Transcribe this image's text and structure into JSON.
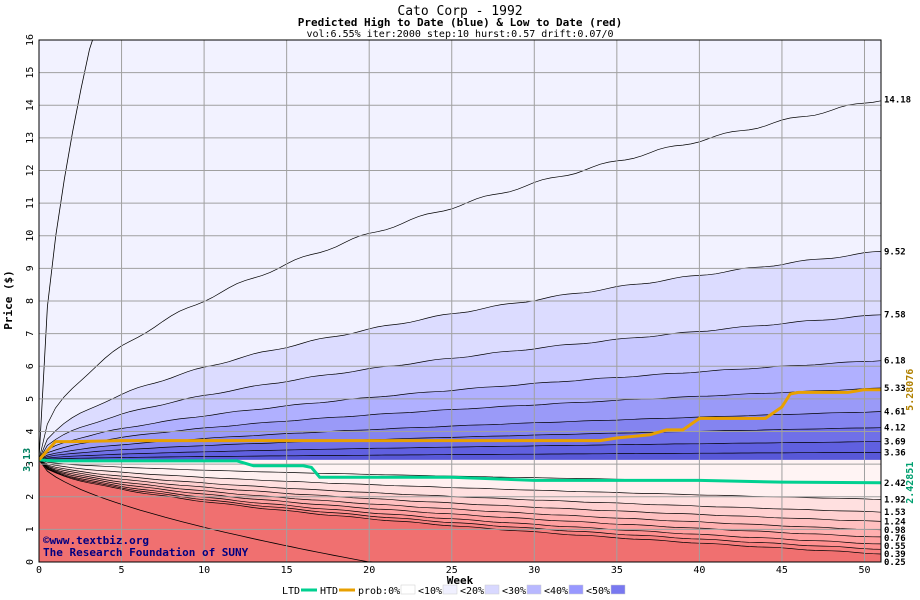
{
  "chart_data": {
    "type": "area",
    "title": "Cato Corp - 1992",
    "subtitle": "Predicted High to Date (blue) &  Low to Date (red)",
    "params": "vol:6.55% iter:2000 step:10 hurst:0.57 drift:0.07/0",
    "xlabel": "Week",
    "ylabel": "Price ($)",
    "xlim": [
      0,
      51
    ],
    "ylim": [
      0,
      16
    ],
    "x_ticks": [
      "0",
      "5",
      "10",
      "15",
      "20",
      "25",
      "30",
      "35",
      "40",
      "45",
      "50"
    ],
    "y_ticks": [
      "0",
      "1",
      "2",
      "3",
      "4",
      "5",
      "6",
      "7",
      "8",
      "9",
      "10",
      "11",
      "12",
      "13",
      "14",
      "15",
      "16"
    ],
    "grid": true,
    "start_price": 3.13,
    "start_label": "3.13",
    "high_quantiles": [
      {
        "end": 14.18,
        "label": "14.18"
      },
      {
        "end": 9.52,
        "label": "9.52"
      },
      {
        "end": 7.58,
        "label": "7.58"
      },
      {
        "end": 6.18,
        "label": "6.18"
      },
      {
        "end": 5.33,
        "label": "5.33"
      },
      {
        "end": 4.61,
        "label": "4.61"
      },
      {
        "end": 4.12,
        "label": "4.12"
      },
      {
        "end": 3.69,
        "label": "3.69"
      },
      {
        "end": 3.36,
        "label": "3.36"
      }
    ],
    "low_quantiles": [
      {
        "end": 2.42,
        "label": "2.42"
      },
      {
        "end": 1.92,
        "label": "1.92"
      },
      {
        "end": 1.53,
        "label": "1.53"
      },
      {
        "end": 1.24,
        "label": "1.24"
      },
      {
        "end": 0.98,
        "label": "0.98"
      },
      {
        "end": 0.76,
        "label": "0.76"
      },
      {
        "end": 0.55,
        "label": "0.55"
      },
      {
        "end": 0.39,
        "label": "0.39"
      },
      {
        "end": 0.25,
        "label": "0.25"
      }
    ],
    "htd_series": {
      "name": "HTD",
      "final_label": "5.28076",
      "points": [
        [
          0,
          3.13
        ],
        [
          1,
          3.69
        ],
        [
          2,
          3.69
        ],
        [
          5,
          3.72
        ],
        [
          10,
          3.72
        ],
        [
          20,
          3.72
        ],
        [
          30,
          3.72
        ],
        [
          34,
          3.72
        ],
        [
          35,
          3.8
        ],
        [
          37,
          3.9
        ],
        [
          38,
          4.05
        ],
        [
          39,
          4.05
        ],
        [
          40,
          4.4
        ],
        [
          42,
          4.4
        ],
        [
          44,
          4.4
        ],
        [
          45,
          4.75
        ],
        [
          45.5,
          5.15
        ],
        [
          46,
          5.2
        ],
        [
          49,
          5.2
        ],
        [
          50,
          5.28
        ],
        [
          51,
          5.28
        ]
      ]
    },
    "ltd_series": {
      "name": "LTD",
      "final_label": "2.42851",
      "points": [
        [
          0,
          3.13
        ],
        [
          1,
          3.1
        ],
        [
          10,
          3.1
        ],
        [
          12,
          3.1
        ],
        [
          13,
          2.95
        ],
        [
          16,
          2.95
        ],
        [
          16.5,
          2.9
        ],
        [
          17,
          2.6
        ],
        [
          20,
          2.6
        ],
        [
          25,
          2.6
        ],
        [
          30,
          2.5
        ],
        [
          35,
          2.5
        ],
        [
          40,
          2.5
        ],
        [
          45,
          2.45
        ],
        [
          51,
          2.43
        ]
      ]
    },
    "legend": [
      {
        "label": "LTD",
        "kind": "line",
        "color": "#00d090"
      },
      {
        "label": "HTD",
        "kind": "line",
        "color": "#e8a000"
      },
      {
        "label": "prob:0%",
        "kind": "swatch",
        "color": "#ffffff"
      },
      {
        "label": "<10%",
        "kind": "swatch",
        "color": "#f0f0ff"
      },
      {
        "label": "<20%",
        "kind": "swatch",
        "color": "#d8d8ff"
      },
      {
        "label": "<30%",
        "kind": "swatch",
        "color": "#b8b8ff"
      },
      {
        "label": "<40%",
        "kind": "swatch",
        "color": "#9898ff"
      },
      {
        "label": "<50%",
        "kind": "swatch",
        "color": "#7878f0"
      }
    ],
    "legend_placement": "bottom",
    "colors": {
      "htd": "#e8a000",
      "ltd": "#00d090",
      "high_fill": [
        "#f2f2ff",
        "#dcdcff",
        "#c8c8ff",
        "#b0b0ff",
        "#9a9af8",
        "#8484f0",
        "#7070e8",
        "#6060e0",
        "#5858d8"
      ],
      "low_fill": [
        "#fff0f0",
        "#ffe0e0",
        "#ffd0d0",
        "#ffc0c0",
        "#ffb0b0",
        "#ffa0a0",
        "#ff9090",
        "#f88080",
        "#f07070"
      ]
    }
  },
  "watermark": {
    "line1": "©www.textbiz.org",
    "line2": "The Research Foundation of SUNY"
  }
}
